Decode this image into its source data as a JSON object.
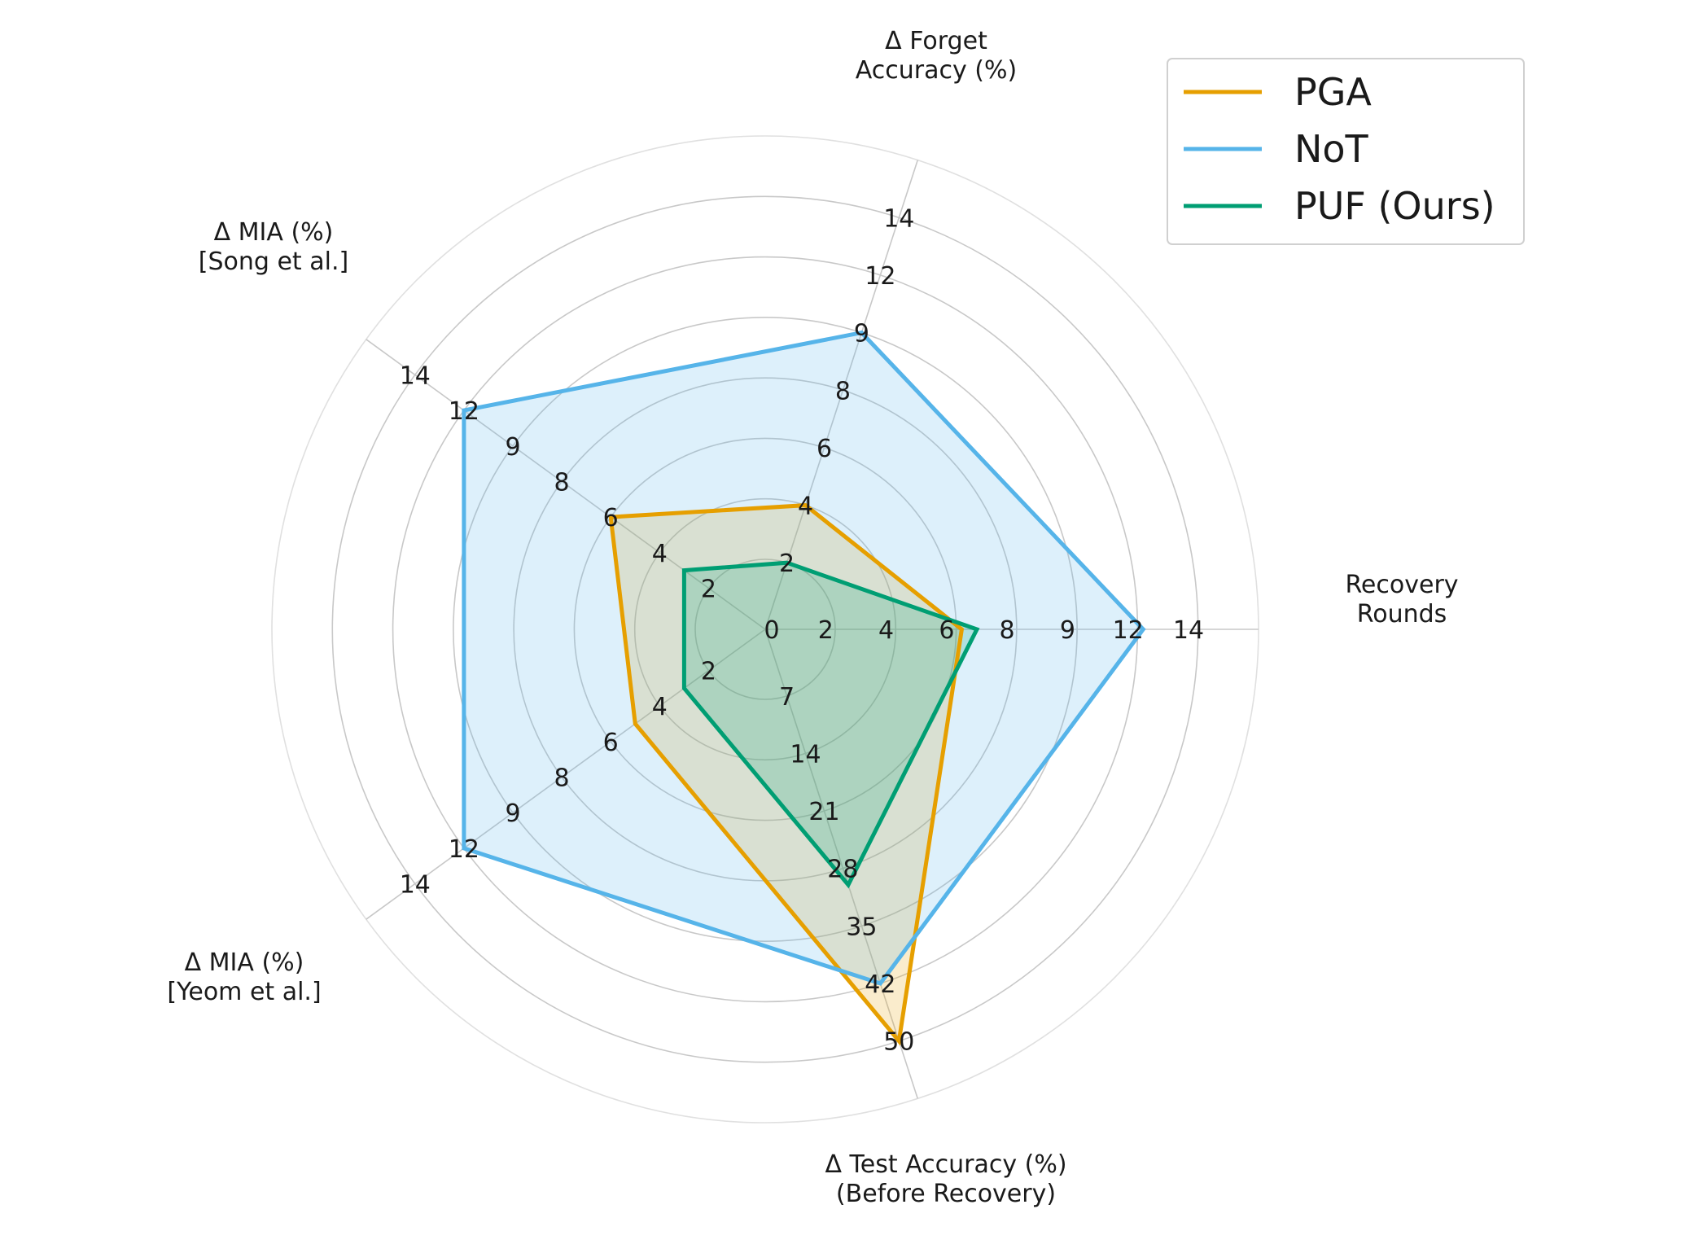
{
  "chart_data": {
    "type": "radar",
    "title": "",
    "axes": [
      {
        "name": "Recovery Rounds",
        "label_lines": [
          "Recovery",
          "Rounds"
        ],
        "ticks": [
          "0",
          "2",
          "4",
          "6",
          "8",
          "9",
          "12",
          "14"
        ]
      },
      {
        "name": "Δ Forget Accuracy (%)",
        "label_lines": [
          "Δ Forget",
          "Accuracy (%)"
        ],
        "ticks": [
          "2",
          "4",
          "6",
          "8",
          "9",
          "12",
          "14"
        ]
      },
      {
        "name": "Δ MIA (%) [Song et al.]",
        "label_lines": [
          "Δ MIA (%)",
          "[Song et al.]"
        ],
        "ticks": [
          "2",
          "4",
          "6",
          "8",
          "9",
          "12",
          "14"
        ]
      },
      {
        "name": "Δ MIA (%) [Yeom et al.]",
        "label_lines": [
          "Δ MIA (%)",
          "[Yeom et al.]"
        ],
        "ticks": [
          "2",
          "4",
          "6",
          "8",
          "9",
          "12",
          "14"
        ]
      },
      {
        "name": "Δ Test Accuracy (%) (Before Recovery)",
        "label_lines": [
          "Δ Test Accuracy (%)",
          "(Before Recovery)"
        ],
        "ticks": [
          "7",
          "14",
          "21",
          "28",
          "35",
          "42",
          "50"
        ]
      }
    ],
    "series": [
      {
        "name": "PGA",
        "color": "#E69F00",
        "values": [
          6.5,
          4,
          6,
          5,
          50
        ]
      },
      {
        "name": "NoT",
        "color": "#56B4E9",
        "values": [
          12.5,
          9,
          12,
          12,
          42
        ]
      },
      {
        "name": "PUF (Ours)",
        "color": "#009E73",
        "values": [
          7,
          2,
          3,
          3,
          30
        ]
      }
    ],
    "grid": true,
    "legend": "top-right"
  }
}
